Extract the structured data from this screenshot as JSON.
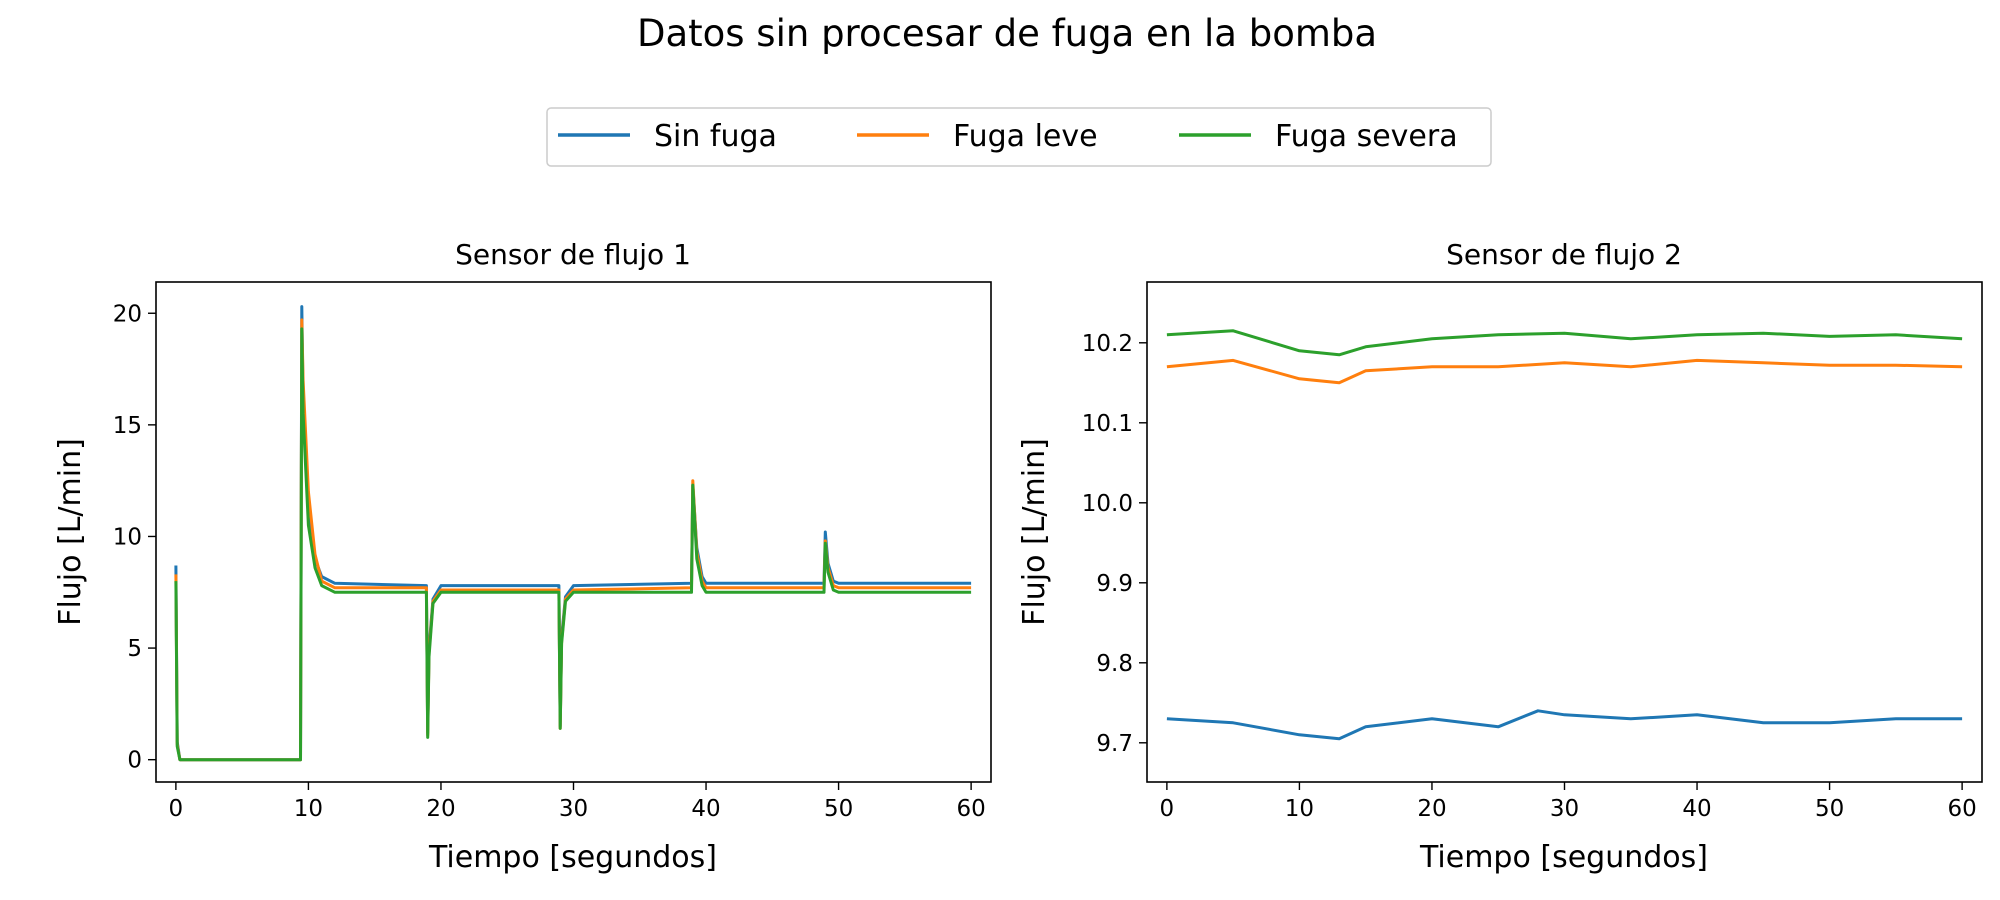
{
  "suptitle": "Datos sin procesar de fuga en la bomba",
  "legend": {
    "placement": "top-center",
    "entries": [
      {
        "label": "Sin fuga",
        "color": "#1f77b4"
      },
      {
        "label": "Fuga leve",
        "color": "#ff7f0e"
      },
      {
        "label": "Fuga severa",
        "color": "#2ca02c"
      }
    ]
  },
  "chart_data": [
    {
      "type": "line",
      "title": "Sensor de flujo 1",
      "xlabel": "Tiempo [segundos]",
      "ylabel": "Flujo [L/min]",
      "xlim": [
        -1.5,
        61.5
      ],
      "ylim": [
        -1,
        21.4
      ],
      "xticks": [
        0,
        10,
        20,
        30,
        40,
        50,
        60
      ],
      "yticks": [
        0,
        5,
        10,
        15,
        20
      ],
      "xtick_labels": [
        "0",
        "10",
        "20",
        "30",
        "40",
        "50",
        "60"
      ],
      "ytick_labels": [
        "0",
        "5",
        "10",
        "15",
        "20"
      ],
      "grid": false,
      "series": [
        {
          "name": "Sin fuga",
          "color": "#1f77b4",
          "x": [
            0,
            0.1,
            0.3,
            9.4,
            9.5,
            9.6,
            10,
            10.5,
            11,
            12,
            18.9,
            19.0,
            19.1,
            19.4,
            20,
            28.9,
            29.0,
            29.1,
            29.4,
            30,
            38.9,
            39.0,
            39.3,
            39.7,
            40,
            48.9,
            49.0,
            49.2,
            49.6,
            50,
            60
          ],
          "y": [
            8.7,
            0.8,
            0,
            0,
            20.3,
            16,
            11,
            9,
            8.2,
            7.9,
            7.8,
            1.2,
            5,
            7.2,
            7.8,
            7.8,
            1.5,
            5.5,
            7.3,
            7.8,
            7.9,
            12.3,
            9.5,
            8.2,
            7.9,
            7.9,
            10.2,
            8.8,
            8.0,
            7.9,
            7.9
          ]
        },
        {
          "name": "Fuga leve",
          "color": "#ff7f0e",
          "x": [
            0,
            0.1,
            0.3,
            9.4,
            9.5,
            9.6,
            10,
            10.5,
            11,
            12,
            18.9,
            19.0,
            19.1,
            19.4,
            20,
            28.9,
            29.0,
            29.1,
            29.4,
            30,
            38.9,
            39.0,
            39.3,
            39.7,
            40,
            48.9,
            49.0,
            49.2,
            49.6,
            50,
            60
          ],
          "y": [
            8.3,
            0.7,
            0,
            0,
            19.7,
            17,
            12,
            9.2,
            8.0,
            7.7,
            7.7,
            1.1,
            4.8,
            7.1,
            7.6,
            7.6,
            1.4,
            5.3,
            7.2,
            7.6,
            7.7,
            12.5,
            9.3,
            8.0,
            7.7,
            7.7,
            9.8,
            8.6,
            7.8,
            7.7,
            7.7
          ]
        },
        {
          "name": "Fuga severa",
          "color": "#2ca02c",
          "x": [
            0,
            0.1,
            0.3,
            9.4,
            9.5,
            9.6,
            10,
            10.5,
            11,
            12,
            18.9,
            19.0,
            19.1,
            19.4,
            20,
            28.9,
            29.0,
            29.1,
            29.4,
            30,
            38.9,
            39.0,
            39.3,
            39.7,
            40,
            48.9,
            49.0,
            49.2,
            49.6,
            50,
            60
          ],
          "y": [
            8.0,
            0.6,
            0,
            0,
            19.3,
            15.5,
            10.5,
            8.6,
            7.8,
            7.5,
            7.5,
            1.0,
            4.6,
            7.0,
            7.5,
            7.5,
            1.4,
            5.2,
            7.1,
            7.5,
            7.5,
            12.3,
            9.0,
            7.8,
            7.5,
            7.5,
            9.7,
            8.4,
            7.6,
            7.5,
            7.5
          ]
        }
      ]
    },
    {
      "type": "line",
      "title": "Sensor de flujo 2",
      "xlabel": "Tiempo [segundos]",
      "ylabel": "Flujo [L/min]",
      "xlim": [
        -1.5,
        61.5
      ],
      "ylim": [
        9.651,
        10.276
      ],
      "xticks": [
        0,
        10,
        20,
        30,
        40,
        50,
        60
      ],
      "yticks": [
        9.7,
        9.8,
        9.9,
        10.0,
        10.1,
        10.2
      ],
      "xtick_labels": [
        "0",
        "10",
        "20",
        "30",
        "40",
        "50",
        "60"
      ],
      "ytick_labels": [
        "9.7",
        "9.8",
        "9.9",
        "10.0",
        "10.1",
        "10.2"
      ],
      "grid": false,
      "series": [
        {
          "name": "Sin fuga",
          "color": "#1f77b4",
          "x": [
            0,
            5,
            10,
            13,
            15,
            20,
            25,
            28,
            30,
            35,
            40,
            45,
            50,
            55,
            60
          ],
          "y": [
            9.73,
            9.725,
            9.71,
            9.705,
            9.72,
            9.73,
            9.72,
            9.74,
            9.735,
            9.73,
            9.735,
            9.725,
            9.725,
            9.73,
            9.73
          ]
        },
        {
          "name": "Fuga leve",
          "color": "#ff7f0e",
          "x": [
            0,
            5,
            10,
            13,
            15,
            20,
            25,
            30,
            35,
            40,
            45,
            50,
            55,
            60
          ],
          "y": [
            10.17,
            10.178,
            10.155,
            10.15,
            10.165,
            10.17,
            10.17,
            10.175,
            10.17,
            10.178,
            10.175,
            10.172,
            10.172,
            10.17
          ]
        },
        {
          "name": "Fuga severa",
          "color": "#2ca02c",
          "x": [
            0,
            5,
            10,
            13,
            15,
            20,
            25,
            30,
            35,
            40,
            45,
            50,
            55,
            60
          ],
          "y": [
            10.21,
            10.215,
            10.19,
            10.185,
            10.195,
            10.205,
            10.21,
            10.212,
            10.205,
            10.21,
            10.212,
            10.208,
            10.21,
            10.205
          ]
        }
      ]
    }
  ]
}
